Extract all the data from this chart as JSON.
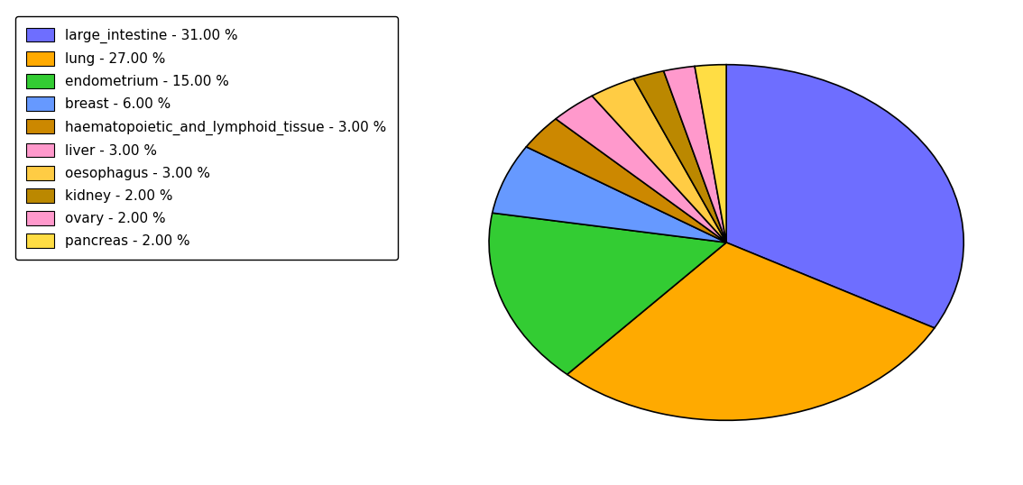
{
  "legend_labels": [
    "large_intestine - 31.00 %",
    "lung - 27.00 %",
    "endometrium - 15.00 %",
    "breast - 6.00 %",
    "haematopoietic_and_lymphoid_tissue - 3.00 %",
    "liver - 3.00 %",
    "oesophagus - 3.00 %",
    "kidney - 2.00 %",
    "ovary - 2.00 %",
    "pancreas - 2.00 %"
  ],
  "sizes": [
    31,
    27,
    15,
    6,
    3,
    3,
    3,
    2,
    2,
    2
  ],
  "colors": [
    "#6e6eff",
    "#ffaa00",
    "#33cc33",
    "#6699ff",
    "#cc8800",
    "#ff99cc",
    "#ffcc44",
    "#bb8800",
    "#ff99cc",
    "#ffdd44"
  ],
  "startangle": 90,
  "background_color": "#ffffff",
  "ellipse_ratio": 0.75
}
